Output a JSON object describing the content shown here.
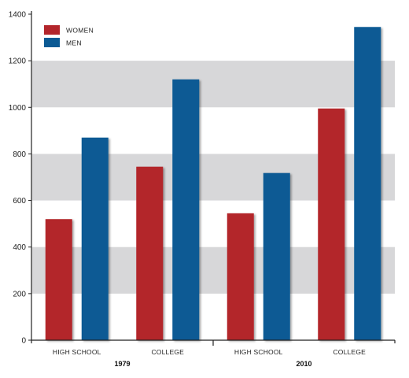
{
  "colors": {
    "band": "#d7d7d9",
    "women": "#b3252b",
    "men": "#0b5a94",
    "axis": "#222222"
  },
  "chart_data": {
    "type": "bar",
    "title": "",
    "xlabel": "",
    "ylabel": "",
    "ylim": [
      0,
      1400
    ],
    "yticks": [
      0,
      200,
      400,
      600,
      800,
      1000,
      1200,
      1400
    ],
    "grid": "alternating horizontal bands",
    "legend": "top-left",
    "groups": [
      {
        "label": "1979",
        "categories": [
          "HIGH SCHOOL",
          "COLLEGE"
        ]
      },
      {
        "label": "2010",
        "categories": [
          "HIGH SCHOOL",
          "COLLEGE"
        ]
      }
    ],
    "series": [
      {
        "name": "WOMEN",
        "color": "#b3252b",
        "values": [
          520,
          745,
          545,
          995
        ]
      },
      {
        "name": "MEN",
        "color": "#0b5a94",
        "values": [
          870,
          1120,
          718,
          1345
        ]
      }
    ]
  }
}
